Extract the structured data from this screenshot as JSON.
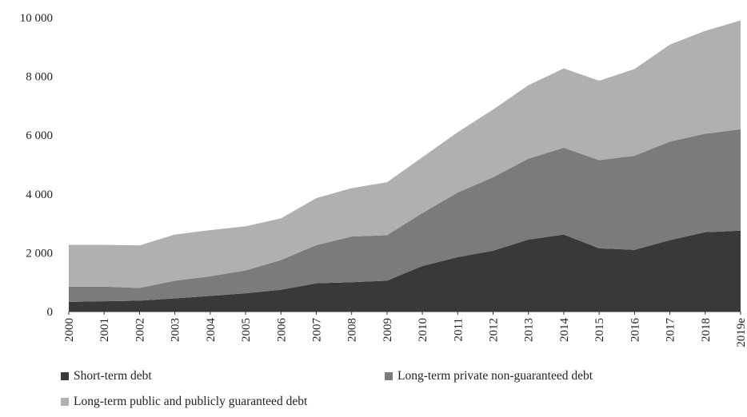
{
  "chart_data": {
    "type": "area",
    "stacked": true,
    "title": "",
    "xlabel": "",
    "ylabel": "",
    "ylim": [
      0,
      10000
    ],
    "y_ticks": [
      0,
      2000,
      4000,
      6000,
      8000,
      10000
    ],
    "y_tick_labels": [
      "0",
      "2 000",
      "4 000",
      "6 000",
      "8 000",
      "10 000"
    ],
    "grid": false,
    "legend_position": "bottom",
    "categories": [
      "2000",
      "2001",
      "2002",
      "2003",
      "2004",
      "2005",
      "2006",
      "2007",
      "2008",
      "2009",
      "2010",
      "2011",
      "2012",
      "2013",
      "2014",
      "2015",
      "2016",
      "2017",
      "2018",
      "2019e"
    ],
    "series": [
      {
        "name": "Short-term debt",
        "color": "#3a3838",
        "values": [
          330,
          350,
          370,
          450,
          530,
          620,
          740,
          960,
          1000,
          1050,
          1550,
          1850,
          2070,
          2450,
          2620,
          2150,
          2100,
          2430,
          2700,
          2750
        ]
      },
      {
        "name": "Long-term private non-guaranteed debt",
        "color": "#7b7b7b",
        "values": [
          520,
          500,
          430,
          600,
          670,
          780,
          1010,
          1300,
          1550,
          1550,
          1800,
          2200,
          2500,
          2750,
          2950,
          3000,
          3200,
          3350,
          3350,
          3450
        ]
      },
      {
        "name": "Long-term public and publicly guaranteed debt",
        "color": "#b0b0b0",
        "values": [
          1420,
          1420,
          1450,
          1570,
          1570,
          1500,
          1420,
          1600,
          1650,
          1800,
          1900,
          2050,
          2300,
          2500,
          2700,
          2700,
          2950,
          3300,
          3500,
          3700
        ]
      }
    ]
  }
}
